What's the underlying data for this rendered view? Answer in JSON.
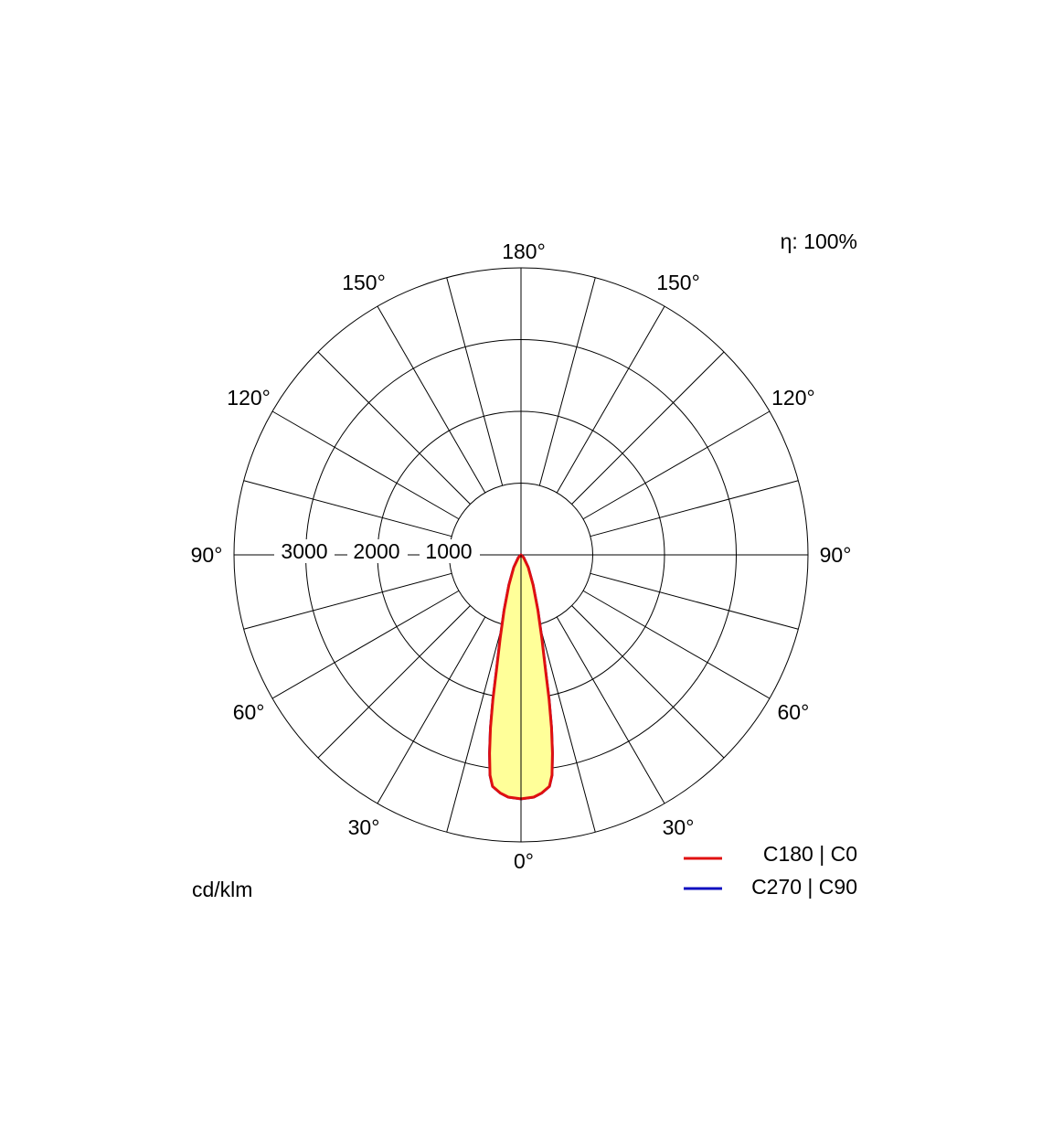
{
  "efficiency_label": "η: 100%",
  "unit_label": "cd/klm",
  "chart_data": {
    "type": "polar",
    "subtype": "luminous-intensity-distribution",
    "radial_axis": {
      "max": 4000,
      "rings": [
        1000,
        2000,
        3000,
        4000
      ],
      "labels": [
        "3000",
        "2000",
        "1000"
      ]
    },
    "angle_labels": {
      "bottom": "0°",
      "top": "180°",
      "left": [
        "30°",
        "60°",
        "90°",
        "120°",
        "150°"
      ],
      "right": [
        "30°",
        "60°",
        "90°",
        "120°",
        "150°"
      ]
    },
    "spoke_step_deg": 15,
    "series": [
      {
        "name": "C180 | C0",
        "color": "#e01010",
        "fill": "#ffff99",
        "values_deg_cd": [
          [
            0,
            3400
          ],
          [
            3,
            3380
          ],
          [
            5,
            3330
          ],
          [
            7,
            3250
          ],
          [
            8,
            3100
          ],
          [
            9,
            2800
          ],
          [
            10,
            2450
          ],
          [
            11,
            2050
          ],
          [
            12,
            1650
          ],
          [
            14,
            1200
          ],
          [
            17,
            800
          ],
          [
            22,
            450
          ],
          [
            30,
            200
          ],
          [
            45,
            50
          ],
          [
            60,
            0
          ]
        ]
      },
      {
        "name": "C270 | C90",
        "color": "#1010c0",
        "values_deg_cd": [
          [
            0,
            3400
          ],
          [
            3,
            3380
          ],
          [
            5,
            3330
          ],
          [
            7,
            3250
          ],
          [
            8,
            3100
          ],
          [
            9,
            2800
          ],
          [
            10,
            2450
          ],
          [
            11,
            2050
          ],
          [
            12,
            1650
          ],
          [
            14,
            1200
          ],
          [
            17,
            800
          ],
          [
            22,
            450
          ],
          [
            30,
            200
          ],
          [
            45,
            50
          ],
          [
            60,
            0
          ]
        ]
      }
    ],
    "legend": {
      "position": "bottom-right"
    }
  }
}
